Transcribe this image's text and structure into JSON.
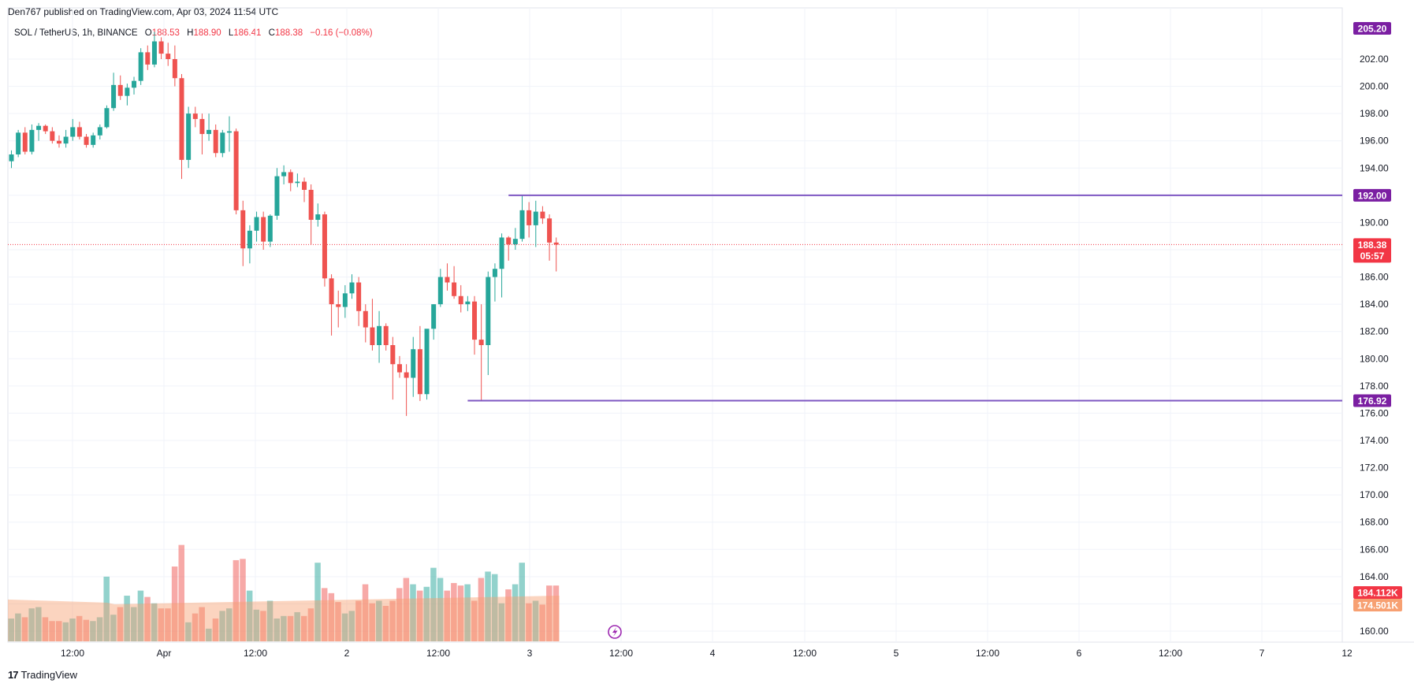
{
  "header": {
    "published": "Den767 published on TradingView.com, Apr 03, 2024 11:54 UTC"
  },
  "symbol": {
    "name": "SOL / TetherUS, 1h, BINANCE",
    "open_label": "O",
    "open": "188.53",
    "high_label": "H",
    "high": "188.90",
    "low_label": "L",
    "low": "186.41",
    "close_label": "C",
    "close": "188.38",
    "change": "−0.16 (−0.08%)"
  },
  "footer": {
    "brand": "TradingView",
    "logo_mark": "17"
  },
  "colors": {
    "up": "#26a69a",
    "down": "#ef5350",
    "level": "#7e57c2",
    "purple_badge": "#7b1fa2",
    "last_price": "#f23645",
    "vol_ma": "#f7a072"
  },
  "chart_data": {
    "type": "candlestick",
    "title": "SOL / TetherUS, 1h, BINANCE",
    "x_ticks": [
      "12:00",
      "Apr",
      "12:00",
      "2",
      "12:00",
      "3",
      "12:00",
      "4",
      "12:00",
      "5",
      "12:00",
      "6",
      "12:00",
      "7",
      "12"
    ],
    "y_ticks": [
      "160.00",
      "162.00",
      "164.00",
      "166.00",
      "168.00",
      "170.00",
      "172.00",
      "174.00",
      "176.00",
      "178.00",
      "180.00",
      "182.00",
      "184.00",
      "186.00",
      "188.00",
      "190.00",
      "192.00",
      "194.00",
      "196.00",
      "198.00",
      "200.00",
      "202.00"
    ],
    "ylim": [
      159,
      206
    ],
    "grid": true,
    "candles": [
      [
        194.5,
        195.3,
        194.0,
        195.0
      ],
      [
        195.0,
        196.8,
        194.8,
        196.6
      ],
      [
        196.6,
        197.0,
        195.0,
        195.2
      ],
      [
        195.2,
        197.2,
        195.0,
        196.8
      ],
      [
        196.8,
        197.3,
        196.0,
        197.1
      ],
      [
        197.1,
        197.2,
        196.5,
        196.7
      ],
      [
        196.7,
        197.0,
        195.8,
        196.0
      ],
      [
        196.0,
        196.4,
        195.5,
        195.8
      ],
      [
        195.8,
        196.8,
        195.5,
        196.3
      ],
      [
        196.3,
        197.6,
        196.0,
        197.0
      ],
      [
        197.0,
        197.4,
        196.1,
        196.3
      ],
      [
        196.3,
        196.5,
        195.5,
        195.7
      ],
      [
        195.7,
        196.6,
        195.5,
        196.4
      ],
      [
        196.4,
        197.2,
        196.1,
        197.0
      ],
      [
        197.0,
        198.6,
        196.9,
        198.4
      ],
      [
        198.4,
        201.0,
        198.2,
        200.1
      ],
      [
        200.1,
        200.8,
        199.0,
        199.3
      ],
      [
        199.3,
        200.2,
        198.6,
        199.9
      ],
      [
        199.9,
        200.7,
        199.4,
        200.4
      ],
      [
        200.4,
        202.8,
        200.1,
        202.5
      ],
      [
        202.5,
        203.0,
        201.2,
        201.6
      ],
      [
        201.6,
        204.0,
        201.4,
        203.3
      ],
      [
        203.3,
        203.6,
        202.0,
        202.4
      ],
      [
        202.4,
        203.2,
        201.5,
        202.0
      ],
      [
        202.0,
        203.0,
        200.0,
        200.6
      ],
      [
        200.6,
        200.9,
        193.2,
        194.6
      ],
      [
        194.6,
        198.5,
        194.0,
        198.0
      ],
      [
        198.0,
        198.5,
        197.0,
        197.6
      ],
      [
        197.6,
        198.0,
        195.0,
        196.5
      ],
      [
        196.5,
        198.0,
        196.0,
        196.8
      ],
      [
        196.8,
        197.2,
        194.8,
        195.1
      ],
      [
        195.1,
        196.8,
        194.8,
        196.6
      ],
      [
        196.6,
        197.8,
        195.2,
        196.7
      ],
      [
        196.7,
        196.9,
        190.6,
        190.9
      ],
      [
        190.9,
        191.6,
        186.8,
        188.1
      ],
      [
        188.1,
        189.8,
        187.0,
        189.4
      ],
      [
        189.4,
        190.8,
        188.6,
        190.4
      ],
      [
        190.4,
        190.8,
        188.0,
        188.6
      ],
      [
        188.6,
        190.6,
        188.2,
        190.5
      ],
      [
        190.5,
        194.0,
        190.2,
        193.4
      ],
      [
        193.4,
        194.2,
        192.8,
        193.7
      ],
      [
        193.7,
        193.9,
        192.3,
        192.9
      ],
      [
        192.9,
        193.6,
        192.6,
        193.0
      ],
      [
        193.0,
        193.3,
        191.5,
        192.4
      ],
      [
        192.4,
        192.8,
        188.4,
        190.2
      ],
      [
        190.2,
        191.4,
        189.7,
        190.6
      ],
      [
        190.6,
        190.8,
        185.3,
        185.9
      ],
      [
        185.9,
        186.2,
        181.7,
        184.0
      ],
      [
        184.0,
        185.0,
        182.3,
        183.8
      ],
      [
        183.8,
        185.4,
        183.0,
        184.8
      ],
      [
        184.8,
        186.2,
        184.4,
        185.6
      ],
      [
        185.6,
        186.0,
        182.4,
        183.5
      ],
      [
        183.5,
        184.0,
        181.2,
        182.3
      ],
      [
        182.3,
        184.4,
        180.6,
        181.0
      ],
      [
        181.0,
        183.5,
        179.7,
        182.4
      ],
      [
        182.4,
        182.6,
        180.6,
        181.0
      ],
      [
        181.0,
        181.6,
        177.0,
        179.6
      ],
      [
        179.6,
        180.2,
        178.6,
        179.0
      ],
      [
        179.0,
        179.6,
        175.8,
        178.6
      ],
      [
        178.6,
        181.6,
        177.2,
        180.7
      ],
      [
        180.7,
        182.4,
        176.9,
        177.4
      ],
      [
        177.4,
        182.0,
        177.0,
        182.2
      ],
      [
        182.2,
        184.0,
        181.4,
        184.0
      ],
      [
        184.0,
        186.6,
        183.8,
        186.0
      ],
      [
        186.0,
        187.0,
        185.0,
        185.6
      ],
      [
        185.6,
        186.8,
        184.4,
        184.6
      ],
      [
        184.6,
        185.4,
        183.4,
        184.0
      ],
      [
        184.0,
        184.6,
        183.5,
        184.2
      ],
      [
        184.2,
        184.6,
        180.3,
        181.4
      ],
      [
        181.4,
        184.0,
        176.92,
        181.0
      ],
      [
        181.0,
        186.4,
        178.8,
        186.0
      ],
      [
        186.0,
        187.0,
        184.2,
        186.6
      ],
      [
        186.6,
        189.2,
        184.5,
        188.9
      ],
      [
        188.9,
        189.0,
        187.2,
        188.4
      ],
      [
        188.4,
        189.6,
        188.0,
        188.8
      ],
      [
        188.8,
        192.0,
        188.6,
        190.9
      ],
      [
        190.9,
        191.5,
        188.9,
        189.8
      ],
      [
        189.8,
        191.6,
        188.2,
        190.8
      ],
      [
        190.8,
        191.2,
        189.9,
        190.3
      ],
      [
        190.3,
        190.6,
        187.2,
        188.53
      ],
      [
        188.53,
        188.9,
        186.41,
        188.38
      ]
    ],
    "volumes": [
      18,
      22,
      19,
      26,
      27,
      19,
      16,
      16,
      15,
      18,
      20,
      17,
      16,
      19,
      51,
      21,
      27,
      36,
      27,
      40,
      35,
      30,
      26,
      26,
      59,
      76,
      15,
      22,
      27,
      10,
      18,
      24,
      26,
      64,
      65,
      40,
      25,
      24,
      32,
      18,
      20,
      20,
      23,
      20,
      26,
      62,
      42,
      38,
      31,
      22,
      24,
      32,
      45,
      30,
      32,
      28,
      32,
      42,
      50,
      45,
      40,
      43,
      58,
      50,
      40,
      46,
      44,
      45,
      32,
      50,
      55,
      53,
      30,
      41,
      45,
      62,
      30,
      32,
      29,
      44,
      44
    ],
    "volume_ma_start": 33,
    "volume_ma_end": 36,
    "levels": [
      {
        "label": "192.00",
        "value": 192.0
      },
      {
        "label": "176.92",
        "value": 176.92
      }
    ],
    "last_price": {
      "label": "188.38",
      "countdown": "05:57",
      "value": 188.38
    },
    "top_badge": {
      "label": "205.20",
      "value": 205.2
    },
    "volume_labels": [
      {
        "label": "184.112K"
      },
      {
        "label": "174.501K"
      }
    ]
  }
}
